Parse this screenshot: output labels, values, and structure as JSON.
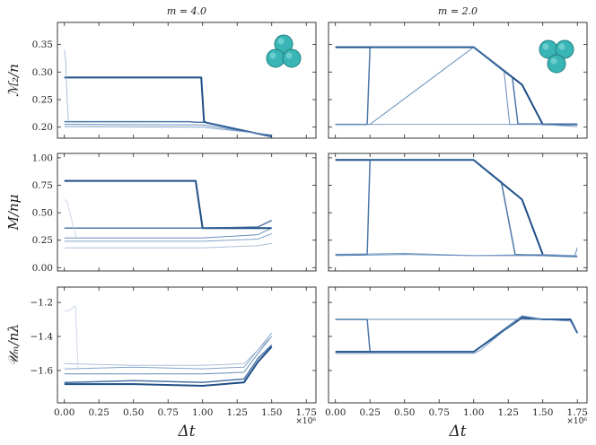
{
  "chart_data": {
    "type": "line",
    "x_label": "Δt",
    "x_multiplier": "×10⁶",
    "x_ticks": [
      "0.00",
      "0.25",
      "0.50",
      "0.75",
      "1.00",
      "1.25",
      "1.50",
      "1.75"
    ],
    "xlim": [
      -0.05,
      1.82
    ],
    "columns": [
      {
        "title": "m = 4.0",
        "icon": "three-sphere-cluster-icon"
      },
      {
        "title": "m = 2.0",
        "icon": "three-sphere-cluster-icon"
      }
    ],
    "rows": [
      {
        "ylabel": "ℳ₂/n",
        "ylim": [
          0.18,
          0.39
        ],
        "yticks": [
          0.2,
          0.25,
          0.3,
          0.35
        ],
        "ytick_labels": [
          "0.20",
          "0.25",
          "0.30",
          "0.35"
        ]
      },
      {
        "ylabel": "M/nμ",
        "ylim": [
          -0.03,
          1.04
        ],
        "yticks": [
          0.0,
          0.25,
          0.5,
          0.75,
          1.0
        ],
        "ytick_labels": [
          "0.00",
          "0.25",
          "0.50",
          "0.75",
          "1.00"
        ]
      },
      {
        "ylabel": "𝒰ₘ/nλ",
        "ylim": [
          -1.79,
          -1.11
        ],
        "yticks": [
          -1.6,
          -1.4,
          -1.2
        ],
        "ytick_labels": [
          "−1.6",
          "−1.4",
          "−1.2"
        ]
      }
    ],
    "panels": [
      {
        "row": 0,
        "col": 0,
        "series": [
          {
            "x": [
              0,
              0.02,
              0.03,
              0.9,
              0.93,
              0.96,
              0.99,
              1.01,
              1.03,
              1.5
            ],
            "y": [
              0.29,
              0.29,
              0.29,
              0.29,
              0.29,
              0.29,
              0.29,
              0.21,
              0.208,
              0.183
            ]
          },
          {
            "x": [
              0,
              0.02,
              0.03,
              0.9,
              0.95,
              1.0,
              1.03,
              1.5
            ],
            "y": [
              0.21,
              0.21,
              0.21,
              0.21,
              0.209,
              0.209,
              0.208,
              0.183
            ]
          },
          {
            "x": [
              0,
              0.03,
              1.0,
              1.5
            ],
            "y": [
              0.205,
              0.205,
              0.204,
              0.185
            ]
          },
          {
            "x": [
              0,
              0.03,
              1.0,
              1.5
            ],
            "y": [
              0.201,
              0.201,
              0.2,
              0.186
            ]
          },
          {
            "x": [
              0,
              0.01,
              0.02,
              0.03
            ],
            "y": [
              0.34,
              0.32,
              0.25,
              0.21
            ]
          }
        ]
      },
      {
        "row": 0,
        "col": 1,
        "series": [
          {
            "x": [
              0,
              0.05,
              1.0,
              1.35,
              1.5,
              1.75
            ],
            "y": [
              0.345,
              0.345,
              0.345,
              0.277,
              0.205,
              0.205
            ]
          },
          {
            "x": [
              0,
              0.23,
              0.25,
              1.0,
              1.2,
              1.28,
              1.32,
              1.75
            ],
            "y": [
              0.205,
              0.205,
              0.345,
              0.345,
              0.305,
              0.29,
              0.206,
              0.205
            ]
          },
          {
            "x": [
              0,
              0.25,
              1.0,
              1.22,
              1.26,
              1.75
            ],
            "y": [
              0.205,
              0.205,
              0.345,
              0.302,
              0.205,
              0.205
            ]
          },
          {
            "x": [
              0,
              0.5,
              1.0,
              1.5,
              1.75
            ],
            "y": [
              0.205,
              0.205,
              0.205,
              0.205,
              0.201
            ]
          }
        ]
      },
      {
        "row": 1,
        "col": 0,
        "series": [
          {
            "x": [
              0,
              0.02,
              0.03,
              0.9,
              0.95,
              1.0,
              1.5
            ],
            "y": [
              0.79,
              0.79,
              0.79,
              0.79,
              0.79,
              0.36,
              0.36
            ]
          },
          {
            "x": [
              0,
              0.03,
              1.0,
              1.4,
              1.5
            ],
            "y": [
              0.36,
              0.36,
              0.36,
              0.37,
              0.43
            ]
          },
          {
            "x": [
              0,
              0.03,
              1.0,
              1.4,
              1.5
            ],
            "y": [
              0.27,
              0.27,
              0.27,
              0.3,
              0.36
            ]
          },
          {
            "x": [
              0,
              0.03,
              1.0,
              1.4,
              1.5
            ],
            "y": [
              0.24,
              0.24,
              0.24,
              0.26,
              0.31
            ]
          },
          {
            "x": [
              0,
              0.03,
              1.0,
              1.4,
              1.5
            ],
            "y": [
              0.18,
              0.18,
              0.18,
              0.2,
              0.22
            ]
          },
          {
            "x": [
              0,
              0.02,
              0.05,
              0.08,
              0.1
            ],
            "y": [
              0.62,
              0.6,
              0.45,
              0.3,
              0.26
            ]
          }
        ]
      },
      {
        "row": 1,
        "col": 1,
        "series": [
          {
            "x": [
              0,
              0.05,
              1.0,
              1.35,
              1.5
            ],
            "y": [
              0.98,
              0.98,
              0.98,
              0.62,
              0.12
            ]
          },
          {
            "x": [
              0,
              0.23,
              0.25,
              1.0,
              1.2,
              1.3,
              1.75
            ],
            "y": [
              0.12,
              0.12,
              0.98,
              0.98,
              0.78,
              0.12,
              0.1
            ]
          },
          {
            "x": [
              0,
              0.5,
              1.0,
              1.5,
              1.73,
              1.75
            ],
            "y": [
              0.11,
              0.12,
              0.11,
              0.11,
              0.1,
              0.18
            ]
          },
          {
            "x": [
              0,
              0.5,
              1.0,
              1.5,
              1.75
            ],
            "y": [
              0.12,
              0.13,
              0.11,
              0.12,
              0.11
            ]
          }
        ]
      },
      {
        "row": 2,
        "col": 0,
        "series": [
          {
            "x": [
              0,
              0.03,
              0.5,
              1.0,
              1.3,
              1.4,
              1.5
            ],
            "y": [
              -1.68,
              -1.68,
              -1.68,
              -1.69,
              -1.67,
              -1.55,
              -1.46
            ]
          },
          {
            "x": [
              0,
              0.03,
              0.5,
              1.0,
              1.3,
              1.4,
              1.5
            ],
            "y": [
              -1.67,
              -1.67,
              -1.66,
              -1.67,
              -1.65,
              -1.53,
              -1.45
            ]
          },
          {
            "x": [
              0,
              0.03,
              0.5,
              1.0,
              1.3,
              1.4,
              1.5
            ],
            "y": [
              -1.62,
              -1.62,
              -1.62,
              -1.62,
              -1.61,
              -1.5,
              -1.4
            ]
          },
          {
            "x": [
              0,
              0.03,
              0.5,
              1.0,
              1.3,
              1.4,
              1.5
            ],
            "y": [
              -1.59,
              -1.59,
              -1.58,
              -1.59,
              -1.58,
              -1.48,
              -1.38
            ]
          },
          {
            "x": [
              0,
              0.03,
              0.5,
              1.0,
              1.3,
              1.4,
              1.5
            ],
            "y": [
              -1.56,
              -1.56,
              -1.57,
              -1.57,
              -1.56,
              -1.48,
              -1.4
            ]
          },
          {
            "x": [
              0,
              0.03,
              0.08,
              0.1
            ],
            "y": [
              -1.25,
              -1.25,
              -1.22,
              -1.6
            ]
          }
        ]
      },
      {
        "row": 2,
        "col": 1,
        "series": [
          {
            "x": [
              0,
              0.05,
              1.0,
              1.35,
              1.5,
              1.7,
              1.75
            ],
            "y": [
              -1.49,
              -1.49,
              -1.49,
              -1.29,
              -1.3,
              -1.3,
              -1.38
            ]
          },
          {
            "x": [
              0,
              0.23,
              0.25,
              1.0,
              1.35,
              1.5,
              1.7,
              1.75
            ],
            "y": [
              -1.3,
              -1.3,
              -1.49,
              -1.49,
              -1.28,
              -1.3,
              -1.3,
              -1.38
            ]
          },
          {
            "x": [
              0,
              0.5,
              1.0,
              1.5,
              1.7,
              1.75
            ],
            "y": [
              -1.3,
              -1.3,
              -1.3,
              -1.3,
              -1.31,
              -1.38
            ]
          },
          {
            "x": [
              0,
              0.5,
              1.0,
              1.05,
              1.35,
              1.5
            ],
            "y": [
              -1.5,
              -1.5,
              -1.5,
              -1.48,
              -1.28,
              -1.3
            ]
          }
        ]
      }
    ]
  }
}
